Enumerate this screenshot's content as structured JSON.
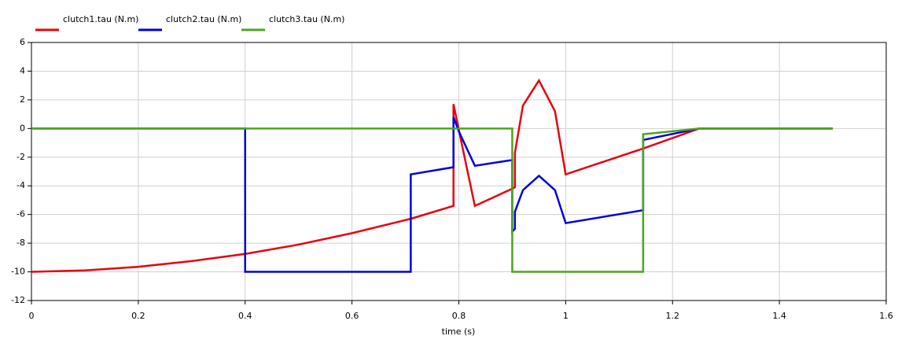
{
  "chart_data": {
    "type": "line",
    "xlabel": "time (s)",
    "x": [
      0,
      0.1,
      0.2,
      0.3,
      0.4,
      0.4,
      0.5,
      0.6,
      0.71,
      0.71,
      0.79,
      0.79,
      0.8,
      0.83,
      0.9,
      0.9,
      0.905,
      0.905,
      0.92,
      0.95,
      0.98,
      1.0,
      1.145,
      1.145,
      1.25,
      1.5
    ],
    "series": [
      {
        "name": "clutch1.tau (N.m)",
        "color": "#e8000b",
        "values": [
          -10,
          -9.9,
          -9.65,
          -9.25,
          -8.75,
          -8.75,
          -8.1,
          -7.3,
          -6.3,
          -6.3,
          -5.4,
          1.7,
          -0.1,
          -5.4,
          -4.2,
          -4.2,
          -4.1,
          -1.7,
          1.6,
          3.35,
          1.2,
          -3.2,
          -1.4,
          -1.4,
          0,
          0
        ]
      },
      {
        "name": "clutch2.tau (N.m)",
        "color": "#0000e0",
        "values": [
          0,
          0,
          0,
          0,
          0,
          -10,
          -10,
          -10,
          -10,
          -3.2,
          -2.7,
          0.8,
          -0.2,
          -2.6,
          -2.2,
          -7.2,
          -7.0,
          -5.8,
          -4.3,
          -3.3,
          -4.3,
          -6.6,
          -5.7,
          -0.8,
          0,
          0
        ]
      },
      {
        "name": "clutch3.tau (N.m)",
        "color": "#4ca41d",
        "values": [
          0,
          0,
          0,
          0,
          0,
          0,
          0,
          0,
          0,
          0,
          0,
          0,
          0,
          0,
          0,
          -10,
          -10,
          -10,
          -10,
          -10,
          -10,
          -10,
          -10,
          -0.4,
          0,
          0
        ]
      }
    ],
    "xlim": [
      0,
      1.6
    ],
    "xticks": [
      0,
      0.2,
      0.4,
      0.6,
      0.8,
      1,
      1.2,
      1.4,
      1.6
    ],
    "ylim": [
      -12,
      6
    ],
    "yticks": [
      -12,
      -10,
      -8,
      -6,
      -4,
      -2,
      0,
      2,
      4,
      6
    ],
    "grid": true
  }
}
